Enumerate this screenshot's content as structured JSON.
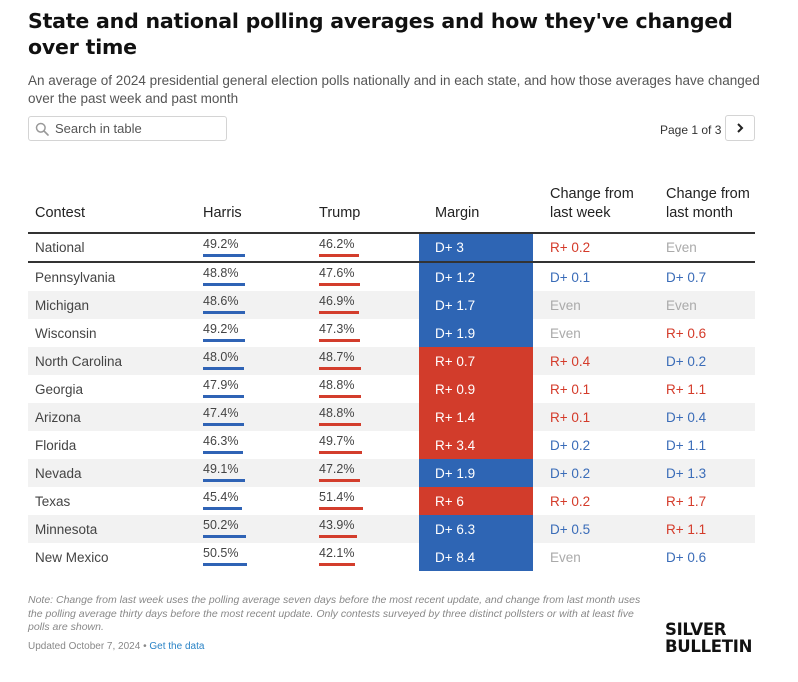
{
  "header": {
    "title": "State and national polling averages and how they've changed over time",
    "subtitle": "An average of 2024 presidential general election polls nationally and in each state, and how those averages have changed over the past week and past month"
  },
  "search": {
    "placeholder": "Search in table",
    "icon": "search-icon"
  },
  "pager": {
    "label": "Page 1 of 3",
    "icon": "chevron-right-icon"
  },
  "columns": {
    "contest": "Contest",
    "harris": "Harris",
    "trump": "Trump",
    "margin": "Margin",
    "change_week": "Change from last week",
    "change_month": "Change from last month"
  },
  "colors": {
    "democrat": "#2e65b4",
    "republican": "#d23c2b",
    "even": "#aaaaaa"
  },
  "rows": [
    {
      "contest": "National",
      "harris": "49.2%",
      "harris_value": 49.2,
      "trump": "46.2%",
      "trump_value": 46.2,
      "margin": "D+ 3",
      "margin_party": "D",
      "week": "R+ 0.2",
      "week_party": "R",
      "month": "Even",
      "month_party": "E"
    },
    {
      "contest": "Pennsylvania",
      "harris": "48.8%",
      "harris_value": 48.8,
      "trump": "47.6%",
      "trump_value": 47.6,
      "margin": "D+ 1.2",
      "margin_party": "D",
      "week": "D+ 0.1",
      "week_party": "D",
      "month": "D+ 0.7",
      "month_party": "D"
    },
    {
      "contest": "Michigan",
      "harris": "48.6%",
      "harris_value": 48.6,
      "trump": "46.9%",
      "trump_value": 46.9,
      "margin": "D+ 1.7",
      "margin_party": "D",
      "week": "Even",
      "week_party": "E",
      "month": "Even",
      "month_party": "E"
    },
    {
      "contest": "Wisconsin",
      "harris": "49.2%",
      "harris_value": 49.2,
      "trump": "47.3%",
      "trump_value": 47.3,
      "margin": "D+ 1.9",
      "margin_party": "D",
      "week": "Even",
      "week_party": "E",
      "month": "R+ 0.6",
      "month_party": "R"
    },
    {
      "contest": "North Carolina",
      "harris": "48.0%",
      "harris_value": 48.0,
      "trump": "48.7%",
      "trump_value": 48.7,
      "margin": "R+ 0.7",
      "margin_party": "R",
      "week": "R+ 0.4",
      "week_party": "R",
      "month": "D+ 0.2",
      "month_party": "D"
    },
    {
      "contest": "Georgia",
      "harris": "47.9%",
      "harris_value": 47.9,
      "trump": "48.8%",
      "trump_value": 48.8,
      "margin": "R+ 0.9",
      "margin_party": "R",
      "week": "R+ 0.1",
      "week_party": "R",
      "month": "R+ 1.1",
      "month_party": "R"
    },
    {
      "contest": "Arizona",
      "harris": "47.4%",
      "harris_value": 47.4,
      "trump": "48.8%",
      "trump_value": 48.8,
      "margin": "R+ 1.4",
      "margin_party": "R",
      "week": "R+ 0.1",
      "week_party": "R",
      "month": "D+ 0.4",
      "month_party": "D"
    },
    {
      "contest": "Florida",
      "harris": "46.3%",
      "harris_value": 46.3,
      "trump": "49.7%",
      "trump_value": 49.7,
      "margin": "R+ 3.4",
      "margin_party": "R",
      "week": "D+ 0.2",
      "week_party": "D",
      "month": "D+ 1.1",
      "month_party": "D"
    },
    {
      "contest": "Nevada",
      "harris": "49.1%",
      "harris_value": 49.1,
      "trump": "47.2%",
      "trump_value": 47.2,
      "margin": "D+ 1.9",
      "margin_party": "D",
      "week": "D+ 0.2",
      "week_party": "D",
      "month": "D+ 1.3",
      "month_party": "D"
    },
    {
      "contest": "Texas",
      "harris": "45.4%",
      "harris_value": 45.4,
      "trump": "51.4%",
      "trump_value": 51.4,
      "margin": "R+ 6",
      "margin_party": "R",
      "week": "R+ 0.2",
      "week_party": "R",
      "month": "R+ 1.7",
      "month_party": "R"
    },
    {
      "contest": "Minnesota",
      "harris": "50.2%",
      "harris_value": 50.2,
      "trump": "43.9%",
      "trump_value": 43.9,
      "margin": "D+ 6.3",
      "margin_party": "D",
      "week": "D+ 0.5",
      "week_party": "D",
      "month": "R+ 1.1",
      "month_party": "R"
    },
    {
      "contest": "New Mexico",
      "harris": "50.5%",
      "harris_value": 50.5,
      "trump": "42.1%",
      "trump_value": 42.1,
      "margin": "D+ 8.4",
      "margin_party": "D",
      "week": "Even",
      "week_party": "E",
      "month": "D+ 0.6",
      "month_party": "D"
    }
  ],
  "footer": {
    "note": "Note: Change from last week uses the polling average seven days before the most recent update, and change from last month uses the polling average thirty days before the most recent update. Only contests surveyed by three distinct pollsters or with at least five polls are shown.",
    "updated": "Updated October 7, 2024 •",
    "data_link": "Get the data",
    "logo_line1": "SILVER",
    "logo_line2": "BULLETIN"
  }
}
